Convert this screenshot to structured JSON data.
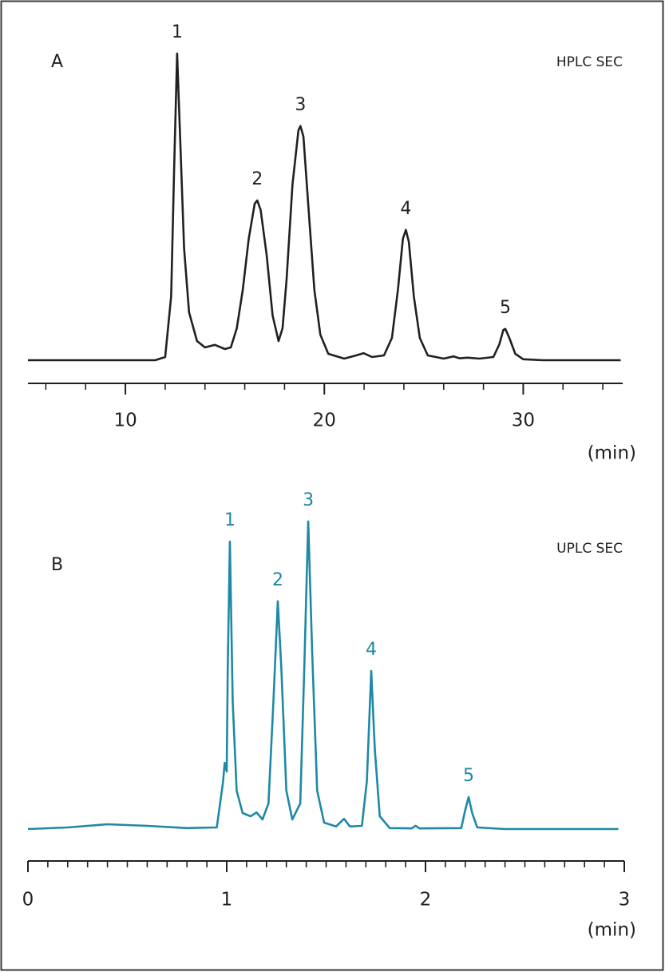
{
  "chart_data": [
    {
      "type": "line",
      "label": "A",
      "subtitle": "HPLC SEC",
      "xlabel": "(min)",
      "color": "#231f20",
      "xlim": [
        5,
        35
      ],
      "ylim": [
        0,
        100
      ],
      "xticks": [
        10,
        20,
        30
      ],
      "xminorticks": [
        6,
        8,
        12,
        14,
        16,
        18,
        22,
        24,
        26,
        28,
        32,
        34
      ],
      "x": [
        5.1,
        11.5,
        12.0,
        12.3,
        12.45,
        12.6,
        12.75,
        12.95,
        13.2,
        13.6,
        14.0,
        14.5,
        15.0,
        15.3,
        15.6,
        15.9,
        16.2,
        16.5,
        16.63,
        16.8,
        17.1,
        17.4,
        17.7,
        17.9,
        18.1,
        18.4,
        18.7,
        18.8,
        18.95,
        19.2,
        19.5,
        19.8,
        20.2,
        21.0,
        21.6,
        21.97,
        22.4,
        23.0,
        23.4,
        23.7,
        23.95,
        24.1,
        24.25,
        24.5,
        24.8,
        25.2,
        26.0,
        26.5,
        26.8,
        27.2,
        27.8,
        28.5,
        28.8,
        29.0,
        29.1,
        29.3,
        29.6,
        30.0,
        31.0,
        34.9
      ],
      "values": [
        0,
        0,
        1,
        20,
        60,
        96,
        70,
        35,
        15,
        6,
        4,
        4.8,
        3.5,
        4,
        10,
        22,
        38,
        49,
        50,
        47,
        33,
        14,
        6,
        10,
        25,
        55,
        72,
        73.3,
        70,
        48,
        22,
        8,
        2,
        0.5,
        1.5,
        2.2,
        1,
        1.5,
        7,
        22,
        38,
        40.8,
        37,
        20,
        7,
        1.5,
        0.5,
        1.2,
        0.6,
        0.8,
        0.5,
        1,
        5,
        9.5,
        9.8,
        7,
        2,
        0.3,
        0,
        0
      ],
      "annotations": [
        {
          "text": "1",
          "x": 12.6,
          "y": 96
        },
        {
          "text": "2",
          "x": 16.63,
          "y": 50
        },
        {
          "text": "3",
          "x": 18.8,
          "y": 73.3
        },
        {
          "text": "4",
          "x": 24.1,
          "y": 40.8
        },
        {
          "text": "5",
          "x": 29.1,
          "y": 9.8
        }
      ]
    },
    {
      "type": "line",
      "label": "B",
      "subtitle": "UPLC SEC",
      "xlabel": "(min)",
      "color": "#1d89a4",
      "xlim": [
        0,
        3
      ],
      "ylim": [
        0,
        100
      ],
      "xticks": [
        0,
        1,
        2,
        3
      ],
      "xminorticks": [
        0.1,
        0.2,
        0.3,
        0.4,
        0.5,
        0.6,
        0.7,
        0.8,
        0.9,
        1.1,
        1.2,
        1.3,
        1.4,
        1.5,
        1.6,
        1.7,
        1.8,
        1.9,
        2.1,
        2.2,
        2.3,
        2.4,
        2.5,
        2.6,
        2.7,
        2.8,
        2.9
      ],
      "x": [
        0,
        0.2,
        0.4,
        0.6,
        0.8,
        0.95,
        0.98,
        0.99,
        1.0,
        1.005,
        1.016,
        1.03,
        1.05,
        1.08,
        1.12,
        1.15,
        1.18,
        1.21,
        1.235,
        1.257,
        1.275,
        1.3,
        1.33,
        1.37,
        1.39,
        1.41,
        1.43,
        1.455,
        1.49,
        1.55,
        1.59,
        1.62,
        1.68,
        1.705,
        1.727,
        1.745,
        1.77,
        1.82,
        1.93,
        1.95,
        1.97,
        2.18,
        2.2,
        2.217,
        2.235,
        2.26,
        2.4,
        2.97
      ],
      "values": [
        0,
        0.5,
        1.5,
        1,
        0.3,
        0.5,
        14,
        20.7,
        18,
        50,
        90,
        40,
        12,
        5,
        4,
        5.2,
        3,
        8,
        40,
        71.3,
        50,
        12,
        3,
        8,
        50,
        96.3,
        55,
        12,
        2,
        0.8,
        3.2,
        0.8,
        1,
        15,
        49.5,
        25,
        4,
        0.3,
        0.2,
        1,
        0.2,
        0.3,
        6,
        10,
        5,
        0.5,
        0,
        0
      ],
      "annotations": [
        {
          "text": "1",
          "x": 1.016,
          "y": 90
        },
        {
          "text": "2",
          "x": 1.257,
          "y": 71.3
        },
        {
          "text": "3",
          "x": 1.41,
          "y": 96.3
        },
        {
          "text": "4",
          "x": 1.727,
          "y": 49.5
        },
        {
          "text": "5",
          "x": 2.217,
          "y": 10
        }
      ]
    }
  ]
}
